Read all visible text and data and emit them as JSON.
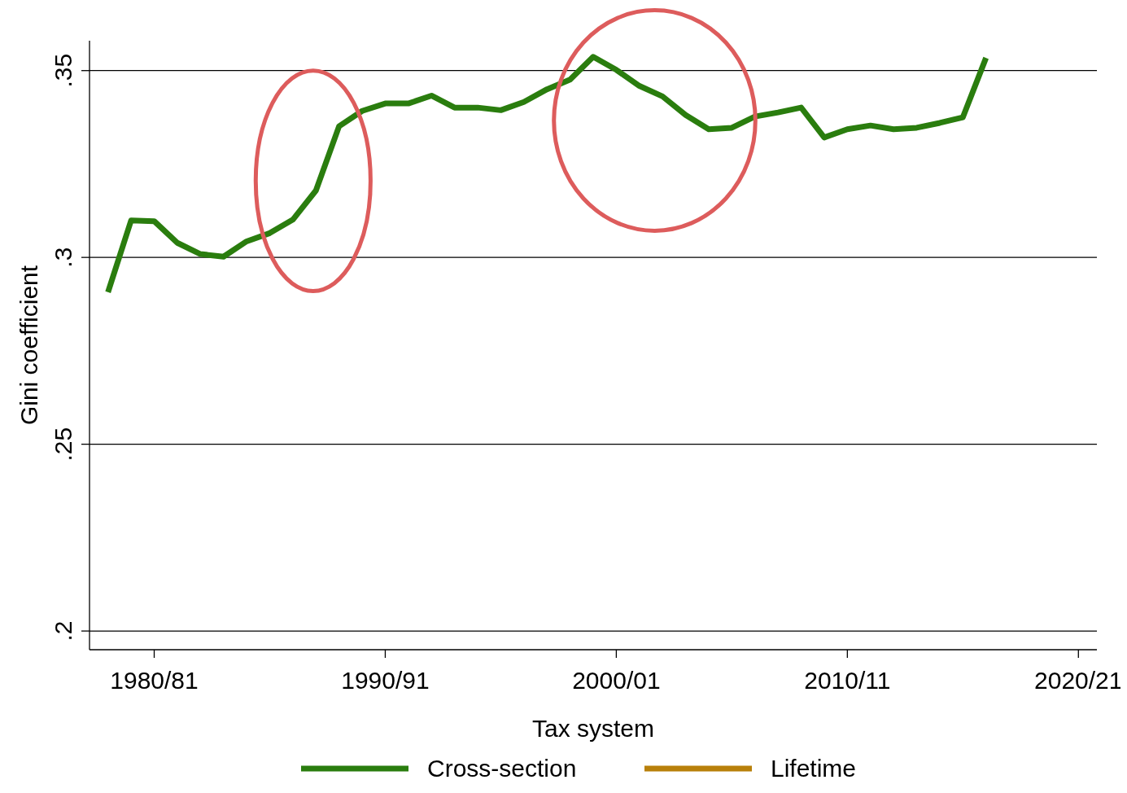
{
  "chart_data": {
    "type": "line",
    "xlabel": "Tax system",
    "ylabel": "Gini coefficient",
    "categories": [
      null,
      null,
      "1980/81",
      null,
      null,
      null,
      null,
      null,
      null,
      null,
      null,
      null,
      "1990/91",
      null,
      null,
      null,
      null,
      null,
      null,
      null,
      null,
      null,
      "2000/01",
      null,
      null,
      null,
      null,
      null,
      null,
      null,
      null,
      null,
      "2010/11",
      null,
      null,
      null,
      null,
      null,
      null,
      null,
      null,
      null,
      "2020/21"
    ],
    "series": [
      {
        "name": "Cross-section",
        "color": "#2a7d0e",
        "values": [
          0.2907,
          0.3099,
          0.3097,
          0.3039,
          0.3009,
          0.3002,
          0.3043,
          0.3065,
          0.3101,
          0.3179,
          0.3351,
          0.3392,
          0.3412,
          0.3412,
          0.3433,
          0.3401,
          0.3401,
          0.3394,
          0.3416,
          0.345,
          0.3476,
          0.3537,
          0.3502,
          0.3459,
          0.3431,
          0.3381,
          0.3343,
          0.3347,
          0.3377,
          0.3388,
          0.3401,
          0.3321,
          0.3343,
          0.3353,
          0.3343,
          0.3347,
          0.336,
          0.3375,
          0.3534,
          null,
          null,
          null,
          null
        ]
      },
      {
        "name": "Lifetime",
        "color": "#b8800a",
        "values": [
          null,
          null,
          null,
          null,
          null,
          null,
          null,
          null,
          null,
          null,
          null,
          null,
          null,
          null,
          null,
          null,
          null,
          null,
          null,
          null,
          null,
          null,
          null,
          null,
          null,
          null,
          null,
          null,
          null,
          null,
          null,
          null,
          null,
          null,
          null,
          null,
          null,
          null,
          null,
          null,
          null,
          null,
          null
        ]
      }
    ],
    "ylim": [
      0.195,
      0.358
    ],
    "yticks": [
      {
        "value": 0.2,
        "label": ".2"
      },
      {
        "value": 0.25,
        "label": ".25"
      },
      {
        "value": 0.3,
        "label": ".3"
      },
      {
        "value": 0.35,
        "label": ".35"
      }
    ],
    "grid": "y",
    "legend": "bottom",
    "line_style": "solid",
    "marker": "none"
  }
}
